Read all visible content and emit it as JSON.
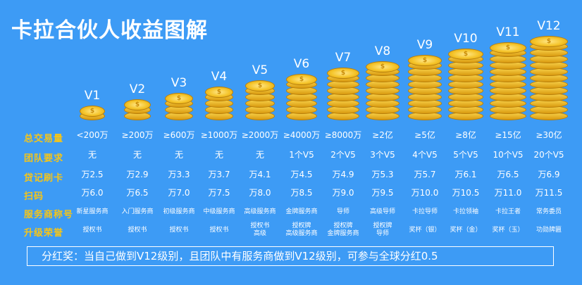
{
  "title": "卡拉合伙人收益图解",
  "levels": [
    "V1",
    "V2",
    "V3",
    "V4",
    "V5",
    "V6",
    "V7",
    "V8",
    "V9",
    "V10",
    "V11",
    "V12"
  ],
  "coin_symbol": "$",
  "rows": [
    {
      "label": "总交易量",
      "values": [
        "<200万",
        "≥200万",
        "≥600万",
        "≥1000万",
        "≥2000万",
        "≥4000万",
        "≥8000万",
        "≥2亿",
        "≥5亿",
        "≥8亿",
        "≥15亿",
        "≥30亿"
      ]
    },
    {
      "label": "团队要求",
      "values": [
        "无",
        "无",
        "无",
        "无",
        "无",
        "1个V5",
        "2个V5",
        "3个V5",
        "4个V5",
        "5个V5",
        "10个V5",
        "20个V5"
      ]
    },
    {
      "label": "贷记刷卡",
      "values": [
        "万2.5",
        "万2.9",
        "万3.3",
        "万3.7",
        "万4.1",
        "万4.5",
        "万4.9",
        "万5.3",
        "万5.7",
        "万6.1",
        "万6.5",
        "万6.9"
      ]
    },
    {
      "label": "扫码",
      "values": [
        "万6.0",
        "万6.5",
        "万7.0",
        "万7.5",
        "万8.0",
        "万8.5",
        "万9.0",
        "万9.5",
        "万10.0",
        "万10.5",
        "万11.0",
        "万11.5"
      ]
    },
    {
      "label": "服务商称号",
      "values": [
        "新星服务商",
        "入门服务商",
        "初级服务商",
        "中级服务商",
        "高级服务商",
        "金牌服务商",
        "导师",
        "高级导师",
        "卡拉导师",
        "卡拉领袖",
        "卡拉王者",
        "常务委员"
      ]
    },
    {
      "label": "升级荣誉",
      "values": [
        "授权书",
        "授权书",
        "授权书",
        "授权书",
        "授权书\n高级",
        "授权牌\n高级服务商",
        "授权牌\n金牌服务商",
        "授权牌\n导师",
        "奖杯（银）",
        "奖杯（金）",
        "奖杯（玉）",
        "功勋牌匾"
      ]
    }
  ],
  "footer": "分红奖：当自己做到V12级别，且团队中有服务商做到V12级别，可参与全球分红0.5"
}
